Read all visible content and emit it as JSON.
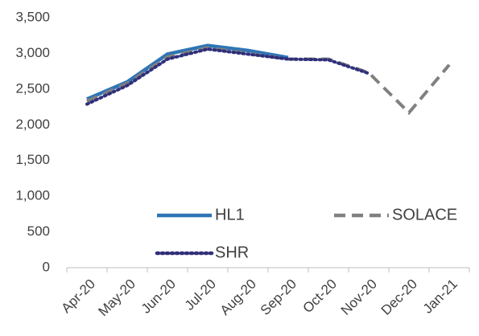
{
  "chart_data": {
    "type": "line",
    "categories": [
      "Apr-20",
      "May-20",
      "Jun-20",
      "Jul-20",
      "Aug-20",
      "Sep-20",
      "Oct-20",
      "Nov-20",
      "Dec-20",
      "Jan-21"
    ],
    "series": [
      {
        "name": "HL1",
        "color": "#2e75b6",
        "style": "solid",
        "values": [
          2360,
          2600,
          2990,
          3110,
          3040,
          2940,
          null,
          null,
          null,
          null
        ]
      },
      {
        "name": "SOLACE",
        "color": "#808080",
        "style": "dashed",
        "values": [
          2330,
          2580,
          2950,
          3080,
          3000,
          2920,
          2920,
          2730,
          2170,
          2840
        ]
      },
      {
        "name": "SHR",
        "color": "#2f2f7a",
        "style": "dotted",
        "values": [
          2290,
          2550,
          2920,
          3060,
          2990,
          2920,
          2910,
          2720,
          null,
          null
        ]
      }
    ],
    "ylim": [
      0,
      3500
    ],
    "yticks": [
      0,
      500,
      {
        "value": 1000,
        "label": "1,000"
      },
      {
        "value": 1500,
        "label": "1,500"
      },
      {
        "value": 2000,
        "label": "2,000"
      },
      {
        "value": 2500,
        "label": "2,500"
      },
      {
        "value": 3000,
        "label": "3,000"
      },
      {
        "value": 3500,
        "label": "3,500"
      }
    ],
    "grid": false
  }
}
